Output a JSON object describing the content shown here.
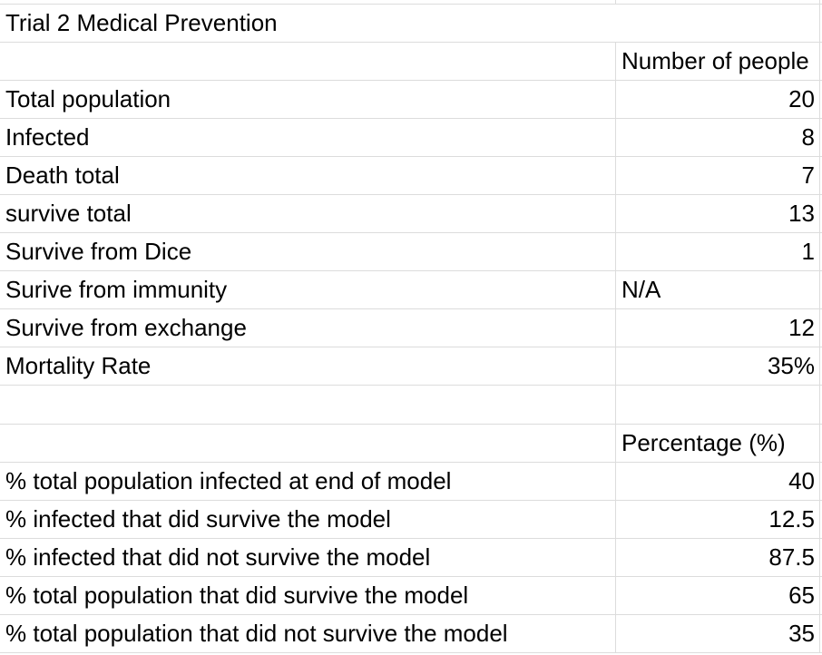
{
  "colors": {
    "gridline": "#dcdcdc",
    "text": "#000000",
    "background": "#ffffff"
  },
  "table": {
    "column_headers": [
      "",
      "Number of people / Percentage (%)"
    ],
    "rows": [
      {
        "label": "Trial 2 Medical Prevention",
        "value": "",
        "merged": true,
        "align": "left",
        "kind": "section-title"
      },
      {
        "label": "",
        "value": "Number of people",
        "merged": false,
        "align": "left",
        "kind": "column-header"
      },
      {
        "label": "Total population",
        "value": "20",
        "merged": false,
        "align": "right",
        "kind": "data"
      },
      {
        "label": "Infected",
        "value": "8",
        "merged": false,
        "align": "right",
        "kind": "data"
      },
      {
        "label": "Death total",
        "value": "7",
        "merged": false,
        "align": "right",
        "kind": "data"
      },
      {
        "label": "survive total",
        "value": "13",
        "merged": false,
        "align": "right",
        "kind": "data"
      },
      {
        "label": "Survive from Dice",
        "value": "1",
        "merged": false,
        "align": "right",
        "kind": "data"
      },
      {
        "label": "Surive from immunity",
        "value": "N/A",
        "merged": false,
        "align": "left",
        "kind": "data"
      },
      {
        "label": "Survive from exchange",
        "value": "12",
        "merged": false,
        "align": "right",
        "kind": "data"
      },
      {
        "label": "Mortality Rate",
        "value": "35%",
        "merged": false,
        "align": "right",
        "kind": "data"
      },
      {
        "label": "",
        "value": "",
        "merged": false,
        "align": "right",
        "kind": "spacer"
      },
      {
        "label": "",
        "value": "Percentage (%)",
        "merged": false,
        "align": "left",
        "kind": "column-header"
      },
      {
        "label": "% total population infected at end of model",
        "value": "40",
        "merged": false,
        "align": "right",
        "kind": "data"
      },
      {
        "label": "% infected that did survive the model",
        "value": "12.5",
        "merged": false,
        "align": "right",
        "kind": "data"
      },
      {
        "label": "% infected that did not survive the model",
        "value": "87.5",
        "merged": false,
        "align": "right",
        "kind": "data"
      },
      {
        "label": "% total population that did survive the model",
        "value": "65",
        "merged": false,
        "align": "right",
        "kind": "data"
      },
      {
        "label": "% total population that did not survive the model",
        "value": "35",
        "merged": false,
        "align": "right",
        "kind": "data"
      }
    ]
  }
}
